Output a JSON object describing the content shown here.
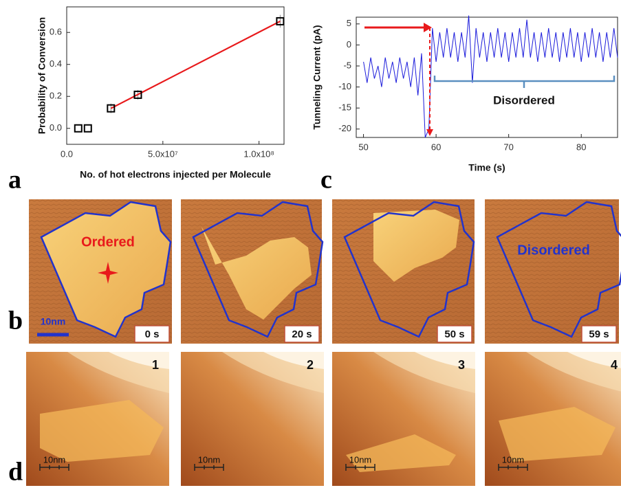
{
  "chart_data": [
    {
      "type": "scatter",
      "y_label": "Probability of Conversion",
      "x_label": "No. of hot electrons injected per Molecule",
      "x": [
        6000000,
        11000000,
        23000000,
        37000000,
        111000000
      ],
      "values": [
        0,
        0,
        0.125,
        0.21,
        0.67
      ],
      "errors": [
        0,
        0,
        0.03,
        0.03,
        0.04
      ],
      "color": "#000000",
      "fit": {
        "x": [
          23000000,
          111000000
        ],
        "values": [
          0.125,
          0.67
        ],
        "color": "#e8191b"
      },
      "xlim": [
        0,
        113000000
      ],
      "ylim": [
        -0.1,
        0.76
      ],
      "xticks": [
        {
          "value": 0,
          "label": "0.0"
        },
        {
          "value": 50000000,
          "label": "5.0x10⁷"
        },
        {
          "value": 100000000,
          "label": "1.0x10⁸"
        }
      ],
      "yticks": [
        {
          "value": 0,
          "label": "0.0"
        },
        0.2,
        0.4,
        0.6
      ]
    },
    {
      "type": "line",
      "y_label": "Tunneling Current (pA)",
      "x_label": "Time (s)",
      "x": [
        50,
        50.5,
        51,
        51.5,
        52,
        52.5,
        53,
        53.5,
        54,
        54.5,
        55,
        55.5,
        56,
        56.5,
        57,
        57.5,
        58,
        58.5,
        59,
        59.5,
        60,
        60.5,
        61,
        61.5,
        62,
        62.5,
        63,
        63.5,
        64,
        64.5,
        65,
        65.5,
        66,
        66.5,
        67,
        67.5,
        68,
        68.5,
        69,
        69.5,
        70,
        70.5,
        71,
        71.5,
        72,
        72.5,
        73,
        73.5,
        74,
        74.5,
        75,
        75.5,
        76,
        76.5,
        77,
        77.5,
        78,
        78.5,
        79,
        79.5,
        80,
        80.5,
        81,
        81.5,
        82,
        82.5,
        83,
        83.5,
        84,
        84.5,
        85
      ],
      "values": [
        -4,
        -9,
        -3,
        -8,
        -5,
        -10,
        -3,
        -8,
        -4,
        -9,
        -3,
        -8,
        -4,
        -10,
        -3,
        -12,
        -2,
        -22,
        -20,
        4,
        -4,
        3,
        -3,
        4,
        -3,
        3,
        -4,
        3,
        -3,
        7,
        -9,
        4,
        -3,
        3,
        -4,
        3,
        -3,
        4,
        -3,
        3,
        -4,
        3,
        -3,
        4,
        -3,
        6,
        -3,
        3,
        -4,
        3,
        -3,
        4,
        -3,
        3,
        -4,
        3,
        -3,
        4,
        -3,
        3,
        -4,
        3,
        -3,
        4,
        -3,
        3,
        -4,
        3,
        -3,
        4,
        -3
      ],
      "color": "#1a1adb",
      "xlim": [
        49,
        85
      ],
      "ylim": [
        -22,
        6.6
      ],
      "xticks": [
        50,
        60,
        70,
        80
      ],
      "yticks": [
        5,
        0,
        -5,
        -10,
        -15,
        -20
      ],
      "annotation": "Disordered"
    }
  ],
  "figure_b": {
    "ordered": "Ordered",
    "disordered": "Disordered",
    "times": [
      "0 s",
      "20 s",
      "50 s",
      "59 s"
    ],
    "scale": "10nm"
  },
  "figure_d": {
    "frames": [
      "1",
      "2",
      "3",
      "4"
    ],
    "scale": "10nm"
  },
  "labels": [
    "a",
    "b",
    "c",
    "d"
  ]
}
